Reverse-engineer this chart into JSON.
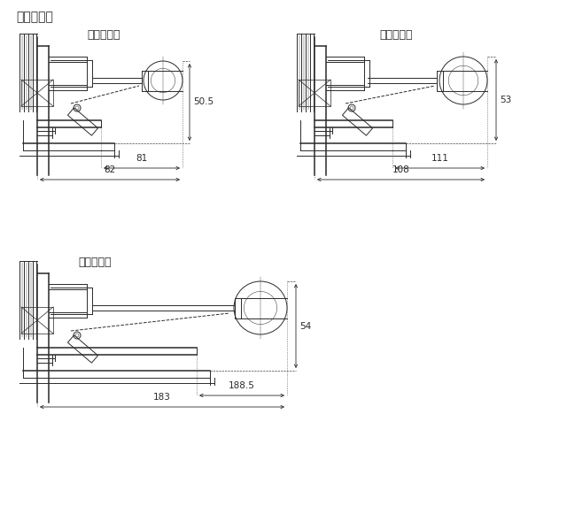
{
  "title": "滑車納まり",
  "label_small": "滑車（小）",
  "label_medium": "滑車（中）",
  "label_large": "滑車（大）",
  "dim_small_h": "50.5",
  "dim_small_w1": "81",
  "dim_small_w2": "82",
  "dim_medium_h": "53",
  "dim_medium_w1": "111",
  "dim_medium_w2": "108",
  "dim_large_h": "54",
  "dim_large_w1": "188.5",
  "dim_large_w2": "183",
  "bg_color": "#ffffff",
  "line_color": "#2a2a2a",
  "dim_color": "#2a2a2a",
  "font_size_title": 10,
  "font_size_label": 9,
  "font_size_dim": 7.5
}
